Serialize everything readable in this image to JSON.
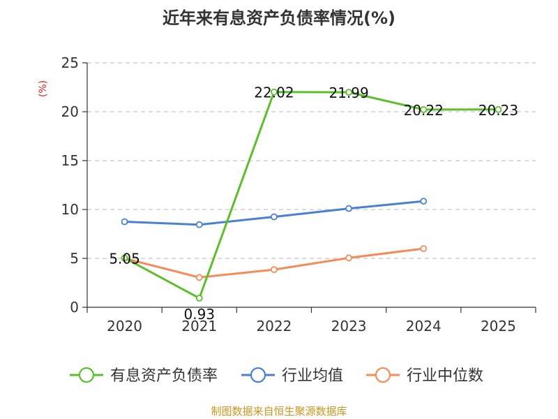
{
  "chart_data": {
    "type": "line",
    "title": "近年来有息资产负债率情况(%)",
    "unit_label": "(%)",
    "categories": [
      "2020",
      "2021",
      "2022",
      "2023",
      "2024",
      "2025"
    ],
    "ylim": [
      0,
      25
    ],
    "yticks": [
      "0",
      "5",
      "10",
      "15",
      "20",
      "25"
    ],
    "grid": true,
    "legend_position": "bottom",
    "series": [
      {
        "name": "有息资产负债率",
        "color": "#5bbf2b",
        "values": [
          5.05,
          0.93,
          22.02,
          21.99,
          20.22,
          20.23
        ],
        "labels": [
          "5.05",
          "0.93",
          "22.02",
          "21.99",
          "20.22",
          "20.23"
        ]
      },
      {
        "name": "行业均值",
        "color": "#4a7fd6",
        "values": [
          8.75,
          8.45,
          9.25,
          10.1,
          10.85,
          null
        ],
        "labels": []
      },
      {
        "name": "行业中位数",
        "color": "#f58a5a",
        "values": [
          5.0,
          3.05,
          3.85,
          5.05,
          6.0,
          null
        ],
        "labels": []
      }
    ],
    "source": "制图数据来自恒生聚源数据库"
  }
}
